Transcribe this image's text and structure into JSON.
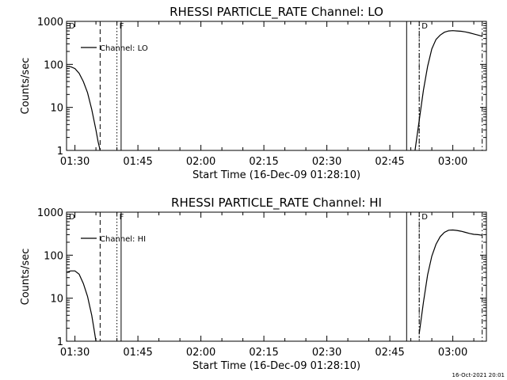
{
  "chart_data": [
    {
      "type": "line",
      "title": "RHESSI PARTICLE_RATE Channel: LO",
      "xlabel": "Start Time (16-Dec-09 01:28:10)",
      "ylabel": "Counts/sec",
      "yscale": "log",
      "ylim": [
        1,
        1000
      ],
      "xlim": [
        "01:28",
        "03:08"
      ],
      "x_ticks": [
        "01:30",
        "01:45",
        "02:00",
        "02:15",
        "02:30",
        "02:45",
        "03:00"
      ],
      "y_ticks": [
        "1",
        "10",
        "100",
        "1000"
      ],
      "legend": {
        "label": "Channel: LO",
        "position": "top-left"
      },
      "flags": [
        {
          "time": "01:28",
          "label": "D"
        },
        {
          "time": "01:40",
          "label": "F"
        },
        {
          "time": "02:52",
          "label": "D"
        }
      ],
      "markers": [
        {
          "time": "01:36",
          "style": "dashed"
        },
        {
          "time": "01:40",
          "style": "dotted"
        },
        {
          "time": "01:41",
          "style": "solid"
        },
        {
          "time": "02:49",
          "style": "solid"
        },
        {
          "time": "02:52",
          "style": "dotted"
        },
        {
          "time": "02:52",
          "style": "dashdot"
        },
        {
          "time": "03:07",
          "style": "dashdot"
        }
      ],
      "series": [
        {
          "segments": [
            [
              [
                "01:28",
                90
              ],
              [
                "01:29",
                88
              ],
              [
                "01:30",
                80
              ],
              [
                "01:31",
                62
              ],
              [
                "01:32",
                40
              ],
              [
                "01:33",
                22
              ],
              [
                "01:34",
                9
              ],
              [
                "01:35",
                3
              ],
              [
                "01:35.5",
                1.6
              ],
              [
                "01:36",
                1
              ]
            ],
            [
              [
                "02:51",
                1
              ],
              [
                "02:52",
                5
              ],
              [
                "02:53",
                25
              ],
              [
                "02:54",
                90
              ],
              [
                "02:55",
                230
              ],
              [
                "02:56",
                380
              ],
              [
                "02:57",
                480
              ],
              [
                "02:58",
                560
              ],
              [
                "02:59",
                600
              ],
              [
                "03:00",
                610
              ],
              [
                "03:01",
                600
              ],
              [
                "03:02",
                590
              ],
              [
                "03:03",
                570
              ],
              [
                "03:04",
                540
              ],
              [
                "03:05",
                510
              ],
              [
                "03:06",
                480
              ],
              [
                "03:07",
                450
              ]
            ]
          ]
        }
      ]
    },
    {
      "type": "line",
      "title": "RHESSI PARTICLE_RATE Channel: HI",
      "xlabel": "Start Time (16-Dec-09 01:28:10)",
      "ylabel": "Counts/sec",
      "yscale": "log",
      "ylim": [
        1,
        1000
      ],
      "xlim": [
        "01:28",
        "03:08"
      ],
      "x_ticks": [
        "01:30",
        "01:45",
        "02:00",
        "02:15",
        "02:30",
        "02:45",
        "03:00"
      ],
      "y_ticks": [
        "1",
        "10",
        "100",
        "1000"
      ],
      "legend": {
        "label": "Channel: HI",
        "position": "top-left"
      },
      "flags": [
        {
          "time": "01:28",
          "label": "D"
        },
        {
          "time": "01:40",
          "label": "F"
        },
        {
          "time": "02:52",
          "label": "D"
        }
      ],
      "markers": [
        {
          "time": "01:36",
          "style": "dashed"
        },
        {
          "time": "01:40",
          "style": "dotted"
        },
        {
          "time": "01:41",
          "style": "solid"
        },
        {
          "time": "02:49",
          "style": "solid"
        },
        {
          "time": "02:52",
          "style": "dotted"
        },
        {
          "time": "02:52",
          "style": "dashdot"
        },
        {
          "time": "03:07",
          "style": "dashdot"
        }
      ],
      "series": [
        {
          "segments": [
            [
              [
                "01:28",
                40
              ],
              [
                "01:29",
                43
              ],
              [
                "01:30",
                43
              ],
              [
                "01:31",
                36
              ],
              [
                "01:32",
                22
              ],
              [
                "01:33",
                11
              ],
              [
                "01:34",
                4
              ],
              [
                "01:34.5",
                2
              ],
              [
                "01:35",
                1
              ]
            ],
            [
              [
                "02:52",
                1.5
              ],
              [
                "02:53",
                8
              ],
              [
                "02:54",
                35
              ],
              [
                "02:55",
                95
              ],
              [
                "02:56",
                180
              ],
              [
                "02:57",
                270
              ],
              [
                "02:58",
                340
              ],
              [
                "02:59",
                380
              ],
              [
                "03:00",
                385
              ],
              [
                "03:01",
                375
              ],
              [
                "03:02",
                360
              ],
              [
                "03:03",
                340
              ],
              [
                "03:04",
                320
              ],
              [
                "03:05",
                305
              ],
              [
                "03:06",
                300
              ],
              [
                "03:07",
                290
              ]
            ]
          ]
        }
      ]
    }
  ],
  "footer": {
    "timestamp": "16-Oct-2021 20:01"
  }
}
